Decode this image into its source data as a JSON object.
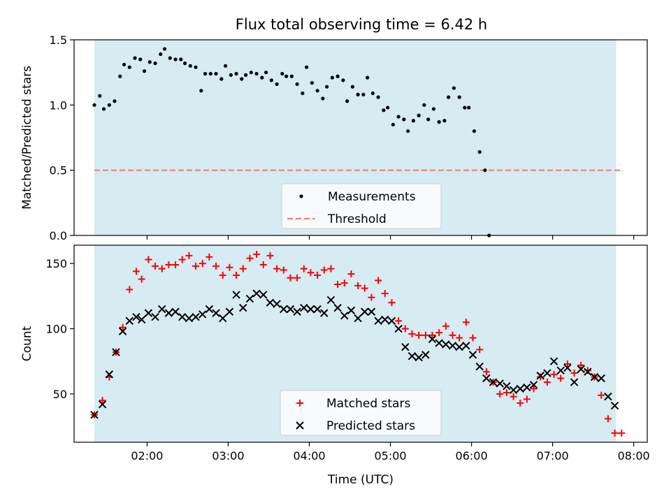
{
  "title": "Flux total observing time = 6.42 h",
  "colors": {
    "band": "#add8e6",
    "measurements": "#000000",
    "threshold": "#f08080",
    "matched": "#ff0000",
    "predicted": "#000000"
  },
  "chart_data": [
    {
      "type": "scatter",
      "title": "Flux total observing time = 6.42 h",
      "xlabel": "",
      "ylabel": "Matched/Predicted stars",
      "ylim": [
        0,
        1.5
      ],
      "yticks": [
        0.0,
        0.5,
        1.0,
        1.5
      ],
      "ytick_labels": [
        "0.0",
        "0.5",
        "1.0",
        "1.5"
      ],
      "xlim": [
        "01:06",
        "08:10"
      ],
      "xticks": [
        "02:00",
        "03:00",
        "04:00",
        "05:00",
        "06:00",
        "07:00",
        "08:00"
      ],
      "xtick_labels_shown": false,
      "shaded_span": [
        "01:21",
        "07:47"
      ],
      "legend_position": "lower-center",
      "legend": [
        "Measurements",
        "Threshold"
      ],
      "threshold": {
        "name": "Threshold",
        "y": 0.5,
        "x": [
          "01:21",
          "07:52"
        ]
      },
      "series": [
        {
          "name": "Measurements",
          "marker": "dot",
          "points": [
            [
              "01:21",
              1.0
            ],
            [
              "01:25",
              1.07
            ],
            [
              "01:28",
              0.97
            ],
            [
              "01:32",
              1.0
            ],
            [
              "01:36",
              1.03
            ],
            [
              "01:40",
              1.22
            ],
            [
              "01:43",
              1.31
            ],
            [
              "01:47",
              1.29
            ],
            [
              "01:51",
              1.36
            ],
            [
              "01:55",
              1.35
            ],
            [
              "01:58",
              1.26
            ],
            [
              "02:02",
              1.33
            ],
            [
              "02:06",
              1.32
            ],
            [
              "02:10",
              1.39
            ],
            [
              "02:13",
              1.43
            ],
            [
              "02:17",
              1.36
            ],
            [
              "02:21",
              1.35
            ],
            [
              "02:25",
              1.35
            ],
            [
              "02:28",
              1.32
            ],
            [
              "02:32",
              1.3
            ],
            [
              "02:36",
              1.29
            ],
            [
              "02:40",
              1.11
            ],
            [
              "02:43",
              1.24
            ],
            [
              "02:47",
              1.24
            ],
            [
              "02:51",
              1.24
            ],
            [
              "02:55",
              1.2
            ],
            [
              "02:58",
              1.3
            ],
            [
              "03:02",
              1.23
            ],
            [
              "03:06",
              1.24
            ],
            [
              "03:10",
              1.2
            ],
            [
              "03:13",
              1.23
            ],
            [
              "03:17",
              1.25
            ],
            [
              "03:21",
              1.24
            ],
            [
              "03:25",
              1.21
            ],
            [
              "03:28",
              1.25
            ],
            [
              "03:32",
              1.19
            ],
            [
              "03:36",
              1.16
            ],
            [
              "03:40",
              1.24
            ],
            [
              "03:43",
              1.22
            ],
            [
              "03:47",
              1.22
            ],
            [
              "03:51",
              1.16
            ],
            [
              "03:55",
              1.09
            ],
            [
              "03:58",
              1.29
            ],
            [
              "04:02",
              1.17
            ],
            [
              "04:06",
              1.11
            ],
            [
              "04:10",
              1.05
            ],
            [
              "04:13",
              1.14
            ],
            [
              "04:17",
              1.21
            ],
            [
              "04:21",
              1.22
            ],
            [
              "04:25",
              1.19
            ],
            [
              "04:28",
              1.03
            ],
            [
              "04:32",
              1.14
            ],
            [
              "04:36",
              1.08
            ],
            [
              "04:40",
              1.08
            ],
            [
              "04:43",
              1.21
            ],
            [
              "04:47",
              1.09
            ],
            [
              "04:51",
              1.06
            ],
            [
              "04:55",
              0.96
            ],
            [
              "04:58",
              0.98
            ],
            [
              "05:02",
              0.85
            ],
            [
              "05:06",
              0.91
            ],
            [
              "05:10",
              0.89
            ],
            [
              "05:13",
              0.8
            ],
            [
              "05:17",
              0.88
            ],
            [
              "05:21",
              0.92
            ],
            [
              "05:25",
              1.0
            ],
            [
              "05:28",
              0.89
            ],
            [
              "05:32",
              0.97
            ],
            [
              "05:36",
              0.87
            ],
            [
              "05:40",
              0.88
            ],
            [
              "05:43",
              1.06
            ],
            [
              "05:47",
              1.13
            ],
            [
              "05:51",
              1.06
            ],
            [
              "05:55",
              0.98
            ],
            [
              "05:58",
              0.98
            ],
            [
              "06:02",
              0.8
            ],
            [
              "06:06",
              0.64
            ],
            [
              "06:10",
              0.5
            ],
            [
              "06:13",
              0.0
            ]
          ]
        }
      ]
    },
    {
      "type": "scatter",
      "title": "",
      "xlabel": "Time (UTC)",
      "ylabel": "Count",
      "ylim": [
        13,
        164
      ],
      "yticks": [
        50,
        100,
        150
      ],
      "ytick_labels": [
        "50",
        "100",
        "150"
      ],
      "xlim": [
        "01:06",
        "08:10"
      ],
      "xticks": [
        "02:00",
        "03:00",
        "04:00",
        "05:00",
        "06:00",
        "07:00",
        "08:00"
      ],
      "xtick_labels": [
        "02:00",
        "03:00",
        "04:00",
        "05:00",
        "06:00",
        "07:00",
        "08:00"
      ],
      "shaded_span": [
        "01:21",
        "07:47"
      ],
      "legend_position": "lower-center",
      "legend": [
        "Matched stars",
        "Predicted stars"
      ],
      "series": [
        {
          "name": "Matched stars",
          "marker": "plus",
          "points": [
            [
              "01:21",
              34
            ],
            [
              "01:27",
              45
            ],
            [
              "01:32",
              63
            ],
            [
              "01:37",
              82
            ],
            [
              "01:42",
              101
            ],
            [
              "01:47",
              130
            ],
            [
              "01:52",
              144
            ],
            [
              "01:56",
              138
            ],
            [
              "02:01",
              153
            ],
            [
              "02:06",
              148
            ],
            [
              "02:11",
              146
            ],
            [
              "02:16",
              149
            ],
            [
              "02:21",
              149
            ],
            [
              "02:26",
              153
            ],
            [
              "02:31",
              156
            ],
            [
              "02:36",
              148
            ],
            [
              "02:41",
              150
            ],
            [
              "02:46",
              155
            ],
            [
              "02:51",
              148
            ],
            [
              "02:56",
              141
            ],
            [
              "03:01",
              147
            ],
            [
              "03:06",
              141
            ],
            [
              "03:11",
              146
            ],
            [
              "03:16",
              154
            ],
            [
              "03:21",
              157
            ],
            [
              "03:26",
              149
            ],
            [
              "03:31",
              156
            ],
            [
              "03:36",
              146
            ],
            [
              "03:41",
              145
            ],
            [
              "03:46",
              139
            ],
            [
              "03:51",
              139
            ],
            [
              "03:56",
              146
            ],
            [
              "04:01",
              143
            ],
            [
              "04:06",
              141
            ],
            [
              "04:11",
              145
            ],
            [
              "04:16",
              146
            ],
            [
              "04:21",
              134
            ],
            [
              "04:26",
              135
            ],
            [
              "04:31",
              142
            ],
            [
              "04:36",
              133
            ],
            [
              "04:41",
              131
            ],
            [
              "04:46",
              124
            ],
            [
              "04:51",
              137
            ],
            [
              "04:56",
              127
            ],
            [
              "05:01",
              120
            ],
            [
              "05:06",
              106
            ],
            [
              "05:11",
              100
            ],
            [
              "05:16",
              96
            ],
            [
              "05:21",
              95
            ],
            [
              "05:26",
              95
            ],
            [
              "05:31",
              95
            ],
            [
              "05:36",
              97
            ],
            [
              "05:41",
              102
            ],
            [
              "05:46",
              95
            ],
            [
              "05:51",
              93
            ],
            [
              "05:56",
              105
            ],
            [
              "06:01",
              93
            ],
            [
              "06:06",
              84
            ],
            [
              "06:11",
              67
            ],
            [
              "06:16",
              59
            ],
            [
              "06:21",
              50
            ],
            [
              "06:26",
              51
            ],
            [
              "06:31",
              48
            ],
            [
              "06:36",
              43
            ],
            [
              "06:41",
              46
            ],
            [
              "06:46",
              54
            ],
            [
              "06:51",
              63
            ],
            [
              "06:56",
              59
            ],
            [
              "07:01",
              65
            ],
            [
              "07:06",
              62
            ],
            [
              "07:11",
              73
            ],
            [
              "07:16",
              66
            ],
            [
              "07:21",
              72
            ],
            [
              "07:26",
              68
            ],
            [
              "07:31",
              63
            ],
            [
              "07:36",
              49
            ],
            [
              "07:41",
              31
            ],
            [
              "07:46",
              20
            ],
            [
              "07:51",
              20
            ]
          ]
        },
        {
          "name": "Predicted stars",
          "marker": "x",
          "points": [
            [
              "01:21",
              34
            ],
            [
              "01:27",
              42
            ],
            [
              "01:32",
              65
            ],
            [
              "01:37",
              82
            ],
            [
              "01:42",
              98
            ],
            [
              "01:47",
              106
            ],
            [
              "01:52",
              109
            ],
            [
              "01:56",
              107
            ],
            [
              "02:01",
              112
            ],
            [
              "02:06",
              109
            ],
            [
              "02:11",
              115
            ],
            [
              "02:16",
              112
            ],
            [
              "02:21",
              113
            ],
            [
              "02:26",
              109
            ],
            [
              "02:31",
              108
            ],
            [
              "02:36",
              109
            ],
            [
              "02:41",
              111
            ],
            [
              "02:46",
              115
            ],
            [
              "02:51",
              112
            ],
            [
              "02:56",
              108
            ],
            [
              "03:01",
              113
            ],
            [
              "03:06",
              126
            ],
            [
              "03:11",
              116
            ],
            [
              "03:16",
              123
            ],
            [
              "03:21",
              127
            ],
            [
              "03:26",
              126
            ],
            [
              "03:31",
              120
            ],
            [
              "03:36",
              119
            ],
            [
              "03:41",
              115
            ],
            [
              "03:46",
              115
            ],
            [
              "03:51",
              113
            ],
            [
              "03:56",
              116
            ],
            [
              "04:01",
              115
            ],
            [
              "04:06",
              115
            ],
            [
              "04:11",
              112
            ],
            [
              "04:16",
              122
            ],
            [
              "04:21",
              116
            ],
            [
              "04:26",
              110
            ],
            [
              "04:31",
              114
            ],
            [
              "04:36",
              108
            ],
            [
              "04:41",
              113
            ],
            [
              "04:46",
              113
            ],
            [
              "04:51",
              106
            ],
            [
              "04:56",
              107
            ],
            [
              "05:01",
              106
            ],
            [
              "05:06",
              100
            ],
            [
              "05:11",
              86
            ],
            [
              "05:16",
              79
            ],
            [
              "05:21",
              78
            ],
            [
              "05:26",
              80
            ],
            [
              "05:31",
              92
            ],
            [
              "05:36",
              89
            ],
            [
              "05:41",
              88
            ],
            [
              "05:46",
              87
            ],
            [
              "05:51",
              86
            ],
            [
              "05:56",
              87
            ],
            [
              "06:01",
              80
            ],
            [
              "06:06",
              71
            ],
            [
              "06:11",
              62
            ],
            [
              "06:16",
              59
            ],
            [
              "06:21",
              58
            ],
            [
              "06:26",
              56
            ],
            [
              "06:31",
              53
            ],
            [
              "06:36",
              54
            ],
            [
              "06:41",
              55
            ],
            [
              "06:46",
              57
            ],
            [
              "06:51",
              64
            ],
            [
              "06:56",
              66
            ],
            [
              "07:01",
              75
            ],
            [
              "07:06",
              68
            ],
            [
              "07:11",
              70
            ],
            [
              "07:16",
              59
            ],
            [
              "07:21",
              69
            ],
            [
              "07:26",
              67
            ],
            [
              "07:31",
              63
            ],
            [
              "07:36",
              62
            ],
            [
              "07:41",
              48
            ],
            [
              "07:46",
              41
            ]
          ]
        }
      ]
    }
  ]
}
